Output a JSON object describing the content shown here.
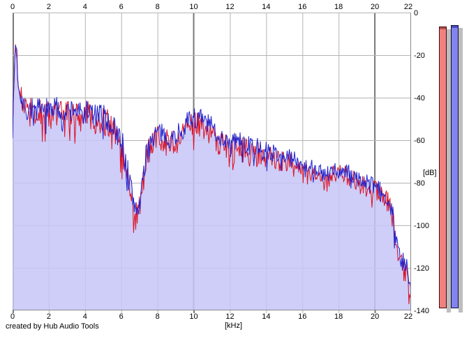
{
  "footer": {
    "credit": "created by Hub Audio Tools"
  },
  "chart_data": {
    "type": "area",
    "title": "",
    "xlabel": "[kHz]",
    "ylabel": "[dB]",
    "xlim": [
      0,
      22
    ],
    "ylim": [
      -140,
      0
    ],
    "x_ticks": [
      0,
      2,
      4,
      6,
      8,
      10,
      12,
      14,
      16,
      18,
      20,
      22
    ],
    "y_ticks": [
      0,
      -20,
      -40,
      -60,
      -80,
      -100,
      -120,
      -140
    ],
    "grid": true,
    "legend_position": "none",
    "noise_step_khz": 0.04,
    "grid_minor_color": "#b4b4b4",
    "grid_major_color": "#787878",
    "border_color": "#8a8a8a",
    "series": [
      {
        "name": "red-spectrum-trace",
        "color": "#dd1122",
        "seed": 99,
        "envelope_khz_db_jitter": [
          [
            0,
            -57,
            2
          ],
          [
            0.06,
            -36,
            3
          ],
          [
            0.14,
            -14,
            2
          ],
          [
            0.22,
            -16,
            3
          ],
          [
            0.3,
            -34,
            5
          ],
          [
            0.45,
            -40,
            6
          ],
          [
            0.7,
            -46,
            7
          ],
          [
            1,
            -47,
            7
          ],
          [
            1.4,
            -48,
            7
          ],
          [
            1.8,
            -48,
            7
          ],
          [
            2.2,
            -46,
            7
          ],
          [
            2.6,
            -48,
            7
          ],
          [
            3,
            -49,
            7
          ],
          [
            3.4,
            -47,
            7
          ],
          [
            3.8,
            -50,
            7
          ],
          [
            4.2,
            -48,
            7
          ],
          [
            4.6,
            -51,
            7
          ],
          [
            5,
            -50,
            7
          ],
          [
            5.4,
            -54,
            7
          ],
          [
            5.8,
            -58,
            7
          ],
          [
            6.1,
            -66,
            8
          ],
          [
            6.4,
            -81,
            8
          ],
          [
            6.7,
            -93,
            7
          ],
          [
            6.9,
            -95,
            7
          ],
          [
            7.1,
            -86,
            7
          ],
          [
            7.3,
            -74,
            7
          ],
          [
            7.6,
            -62,
            7
          ],
          [
            8,
            -58,
            6
          ],
          [
            8.4,
            -60,
            6
          ],
          [
            8.8,
            -61,
            6
          ],
          [
            9.2,
            -58,
            6
          ],
          [
            9.6,
            -55,
            6
          ],
          [
            10,
            -52,
            6
          ],
          [
            10.4,
            -53,
            6
          ],
          [
            10.8,
            -55,
            6
          ],
          [
            11.2,
            -59,
            6
          ],
          [
            11.6,
            -62,
            6
          ],
          [
            12,
            -63,
            6
          ],
          [
            12.4,
            -63,
            6
          ],
          [
            12.8,
            -65,
            6
          ],
          [
            13.2,
            -66,
            6
          ],
          [
            13.6,
            -67,
            6
          ],
          [
            14,
            -68,
            5
          ],
          [
            14.4,
            -68,
            5
          ],
          [
            14.8,
            -70,
            5
          ],
          [
            15.2,
            -70,
            5
          ],
          [
            15.6,
            -71,
            5
          ],
          [
            16,
            -73,
            5
          ],
          [
            16.4,
            -74,
            5
          ],
          [
            16.8,
            -75,
            5
          ],
          [
            17.2,
            -79,
            5
          ],
          [
            17.5,
            -77,
            5
          ],
          [
            18,
            -76,
            5
          ],
          [
            18.4,
            -77,
            5
          ],
          [
            18.8,
            -79,
            5
          ],
          [
            19.2,
            -81,
            5
          ],
          [
            19.6,
            -82,
            5
          ],
          [
            20,
            -84,
            5
          ],
          [
            20.4,
            -86,
            5
          ],
          [
            20.8,
            -90,
            5
          ],
          [
            21,
            -97,
            5
          ],
          [
            21.2,
            -110,
            6
          ],
          [
            21.4,
            -117,
            6
          ],
          [
            21.6,
            -119,
            6
          ],
          [
            21.8,
            -122,
            7
          ],
          [
            22,
            -134,
            4
          ]
        ]
      },
      {
        "name": "blue-spectrum-trace",
        "color": "#2222cc",
        "fill": "rgba(198,198,248,0.85)",
        "seed": 7,
        "envelope_khz_db_jitter": [
          [
            0,
            -55,
            2
          ],
          [
            0.06,
            -38,
            3
          ],
          [
            0.14,
            -16,
            2
          ],
          [
            0.22,
            -15,
            3
          ],
          [
            0.3,
            -32,
            5
          ],
          [
            0.45,
            -38,
            6
          ],
          [
            0.7,
            -44,
            6
          ],
          [
            1,
            -45,
            6
          ],
          [
            1.4,
            -46,
            6
          ],
          [
            1.8,
            -46,
            6
          ],
          [
            2.2,
            -44,
            6
          ],
          [
            2.6,
            -46,
            6
          ],
          [
            3,
            -47,
            6
          ],
          [
            3.4,
            -45,
            6
          ],
          [
            3.8,
            -48,
            6
          ],
          [
            4.2,
            -46,
            6
          ],
          [
            4.6,
            -49,
            6
          ],
          [
            5,
            -48,
            6
          ],
          [
            5.4,
            -52,
            6
          ],
          [
            5.8,
            -56,
            6
          ],
          [
            6.1,
            -63,
            7
          ],
          [
            6.4,
            -78,
            8
          ],
          [
            6.7,
            -90,
            7
          ],
          [
            6.9,
            -92,
            7
          ],
          [
            7.1,
            -84,
            7
          ],
          [
            7.3,
            -72,
            7
          ],
          [
            7.6,
            -60,
            6
          ],
          [
            8,
            -56,
            5
          ],
          [
            8.4,
            -58,
            5
          ],
          [
            8.8,
            -59,
            5
          ],
          [
            9.2,
            -56,
            5
          ],
          [
            9.6,
            -52,
            5
          ],
          [
            10,
            -49,
            5
          ],
          [
            10.4,
            -50,
            5
          ],
          [
            10.8,
            -52,
            5
          ],
          [
            11.2,
            -56,
            5
          ],
          [
            11.6,
            -59,
            5
          ],
          [
            12,
            -60,
            5
          ],
          [
            12.4,
            -60,
            5
          ],
          [
            12.8,
            -62,
            5
          ],
          [
            13.2,
            -63,
            5
          ],
          [
            13.6,
            -64,
            5
          ],
          [
            14,
            -65,
            5
          ],
          [
            14.4,
            -66,
            4
          ],
          [
            14.8,
            -67,
            4
          ],
          [
            15.2,
            -68,
            4
          ],
          [
            15.6,
            -69,
            4
          ],
          [
            16,
            -71,
            4
          ],
          [
            16.4,
            -72,
            4
          ],
          [
            16.8,
            -73,
            4
          ],
          [
            17.2,
            -77,
            4
          ],
          [
            17.5,
            -75,
            4
          ],
          [
            18,
            -74,
            4
          ],
          [
            18.4,
            -75,
            4
          ],
          [
            18.8,
            -77,
            4
          ],
          [
            19.2,
            -79,
            4
          ],
          [
            19.6,
            -80,
            4
          ],
          [
            20,
            -82,
            4
          ],
          [
            20.4,
            -84,
            4
          ],
          [
            20.8,
            -88,
            4
          ],
          [
            21,
            -95,
            5
          ],
          [
            21.2,
            -108,
            5
          ],
          [
            21.4,
            -116,
            5
          ],
          [
            21.6,
            -118,
            5
          ],
          [
            21.8,
            -121,
            6
          ],
          [
            22,
            -132,
            4
          ]
        ]
      }
    ]
  },
  "meters": {
    "shadow_color": "#bdbdbd",
    "left": {
      "value_db": -6.6,
      "fill": "#f18181",
      "border": "#3a0d0d",
      "cap": "#b84c4c"
    },
    "right": {
      "value_db": -5.9,
      "fill": "#8383ee",
      "border": "#0d0d3a",
      "cap": "#4c4cb8"
    }
  }
}
